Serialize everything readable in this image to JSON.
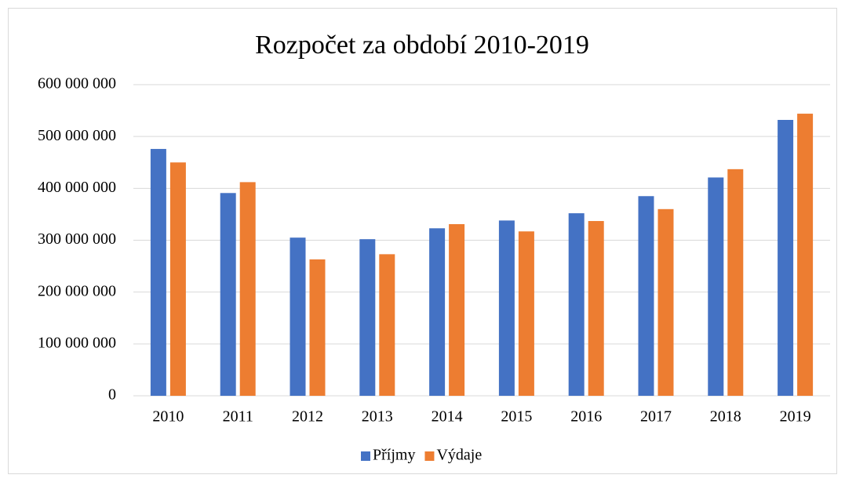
{
  "chart_data": {
    "type": "bar",
    "title": "Rozpočet za období 2010-2019",
    "categories": [
      "2010",
      "2011",
      "2012",
      "2013",
      "2014",
      "2015",
      "2016",
      "2017",
      "2018",
      "2019"
    ],
    "series": [
      {
        "name": "Příjmy",
        "color": "#4472c4",
        "values": [
          476000000,
          391000000,
          305000000,
          302000000,
          323000000,
          338000000,
          352000000,
          385000000,
          421000000,
          532000000
        ]
      },
      {
        "name": "Výdaje",
        "color": "#ed7d31",
        "values": [
          450000000,
          412000000,
          263000000,
          273000000,
          331000000,
          317000000,
          337000000,
          360000000,
          437000000,
          544000000
        ]
      }
    ],
    "ylim": [
      0,
      600000000
    ],
    "yticks": [
      0,
      {
        "value": 100000000,
        "label": "100 000 000"
      },
      {
        "value": 200000000,
        "label": "200 000 000"
      },
      {
        "value": 300000000,
        "label": "300 000 000"
      },
      {
        "value": 400000000,
        "label": "400 000 000"
      },
      {
        "value": 500000000,
        "label": "500 000 000"
      },
      {
        "value": 600000000,
        "label": "600 000 000"
      }
    ],
    "grid": true,
    "legend": "bottom"
  }
}
